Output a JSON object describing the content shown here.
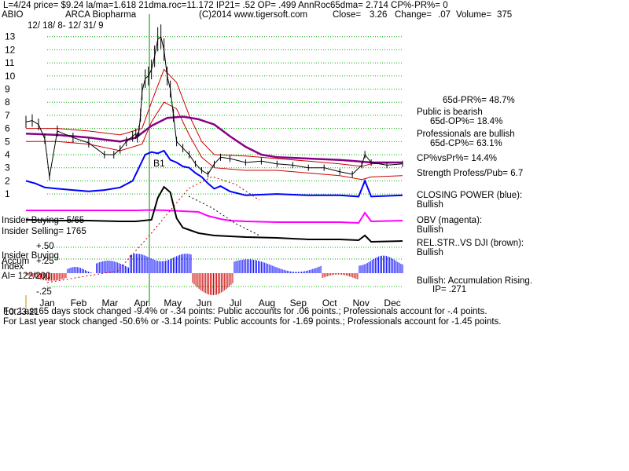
{
  "header": {
    "line1": "L=4/24  price= $9.24  la/ma=1.618 21dma.roc=11.172 IP21= .52 OP= .499 AnnRoc65dma= 2.714 CP%-PR%=  0",
    "ticker": "ABIO",
    "company": "ARCA Biopharma",
    "source": "(C)2014 www.tigersoft.com",
    "close_label": "Close=",
    "close_value": "3.26",
    "change_label": "Change=",
    "change_value": ".07",
    "volume_label": "Volume=",
    "volume_value": "375",
    "date_range": "12/ 18/ 8- 12/ 31/ 9"
  },
  "right_panel": {
    "pr_pct": "65d-PR%= 48.7%",
    "public_status": "Public is bearish",
    "op_pct": "65d-OP%= 18.4%",
    "pro_status": "Professionals are bullish",
    "cp_pct": "65d-CP%= 63.1%",
    "cp_vs_pr": "CP%vsPr%=  14.4%",
    "strength": "Strength Profess/Pub= 6.7",
    "closing_power_label": "CLOSING POWER (blue):",
    "closing_power_status": "Bullish",
    "obv_label": "OBV (magenta):",
    "obv_status": "Bullish",
    "relstr_label": "REL.STR..VS DJI (brown):",
    "relstr_status": "Bullish",
    "accum_label": "Bullish: Accumulation Rising.",
    "ip_label": "IP=  .271"
  },
  "left_panel": {
    "insider_buying": "Insider Buying= 5/65",
    "insider_selling": "Insider Selling= 1765",
    "accum_title1": "Insider Buying",
    "accum_title2": "Accum",
    "accum_title3": "Index",
    "ai_label": "AI= 122/200",
    "upper_line_label": "+.50",
    "mid_line_label": "+.25",
    "lower_line_label": "-.25"
  },
  "footer": {
    "line1": "For Last 65 days stock changed -9.4% or -.34 points:  Public accounts for  .06 points.;  Professionals account for -.4 points.",
    "line1_overlay": "10.23.21",
    "line2": "For Last year stock changed -50.6% or -3.14 points:  Public accounts for -1.69 points.;  Professionals account for -1.45 points."
  },
  "annotation": "B1",
  "colors": {
    "price": "#000000",
    "ma_red": "#cc0000",
    "ma_purple": "#880088",
    "closing_power": "#0000ff",
    "obv": "#ff00ff",
    "relstr": "#7a2a00",
    "accum_pos": "#0000ff",
    "accum_neg": "#cc0000",
    "vline": "#008800",
    "grid": "#00aa00"
  },
  "chart_data": {
    "type": "line",
    "ylim": [
      0,
      14
    ],
    "yticks": [
      1,
      2,
      3,
      4,
      5,
      6,
      7,
      8,
      9,
      10,
      11,
      12,
      13
    ],
    "months": [
      "Jan",
      "Feb",
      "Mar",
      "Apr",
      "May",
      "Jun",
      "Jul",
      "Aug",
      "Sep",
      "Oct",
      "Nov",
      "Dec"
    ],
    "price": {
      "x": [
        0,
        0.2,
        0.4,
        0.6,
        0.75,
        1,
        1.5,
        2,
        2.5,
        2.8,
        3,
        3.2,
        3.4,
        3.5,
        3.55,
        3.6,
        3.65,
        3.7,
        3.8,
        3.9,
        4,
        4.1,
        4.2,
        4.3,
        4.4,
        4.5,
        4.6,
        4.7,
        4.8,
        5,
        5.2,
        5.4,
        5.6,
        5.8,
        6,
        6.2,
        6.5,
        7,
        7.5,
        8,
        8.5,
        9,
        9.5,
        10,
        10.4,
        10.7,
        10.8,
        11,
        11.5,
        12
      ],
      "y": [
        6.5,
        6.6,
        6.3,
        5.2,
        2.3,
        5.8,
        5.3,
        4.9,
        4.0,
        4.0,
        4.4,
        5.0,
        5.4,
        5.6,
        5.3,
        5.8,
        7.0,
        8.8,
        9.8,
        10.0,
        10.5,
        11.5,
        12.8,
        13.0,
        12.0,
        10.0,
        9.0,
        7.0,
        5.0,
        4.5,
        4.0,
        3.3,
        2.8,
        2.5,
        3.3,
        3.8,
        3.7,
        3.4,
        3.5,
        3.3,
        3.2,
        3.0,
        3.0,
        2.7,
        2.5,
        3.2,
        4.0,
        3.4,
        3.2,
        3.3
      ]
    },
    "ma_red_upper": {
      "x": [
        0,
        1,
        2,
        3,
        3.7,
        4,
        4.4,
        4.8,
        5.2,
        5.6,
        6,
        7,
        8,
        9,
        10,
        10.7,
        11,
        12
      ],
      "y": [
        6.0,
        6.0,
        5.8,
        5.5,
        6.0,
        8.0,
        10.5,
        9.5,
        7.0,
        5.0,
        4.0,
        3.9,
        3.7,
        3.5,
        3.3,
        3.1,
        3.3,
        3.4
      ]
    },
    "ma_red_lower": {
      "x": [
        0,
        1,
        2,
        3,
        3.7,
        4,
        4.4,
        4.8,
        5.2,
        5.6,
        6,
        7,
        8,
        9,
        10,
        10.7,
        11,
        12
      ],
      "y": [
        5.0,
        5.0,
        4.8,
        4.3,
        4.8,
        6.5,
        8.0,
        7.5,
        5.5,
        3.8,
        3.0,
        2.8,
        2.8,
        2.6,
        2.4,
        2.1,
        2.3,
        2.4
      ]
    },
    "ma_purple": {
      "x": [
        0,
        1,
        2,
        3,
        3.5,
        4,
        4.5,
        5,
        5.5,
        6,
        6.5,
        7,
        7.5,
        8,
        9,
        10,
        10.5,
        11,
        12
      ],
      "y": [
        5.6,
        5.5,
        5.3,
        5.0,
        5.3,
        6.2,
        6.8,
        6.9,
        6.7,
        6.3,
        5.4,
        4.6,
        4.0,
        3.8,
        3.7,
        3.6,
        3.5,
        3.4,
        3.4
      ]
    },
    "closing_power": {
      "x": [
        0,
        0.3,
        0.6,
        1,
        1.5,
        2,
        2.5,
        3,
        3.4,
        3.6,
        3.8,
        4,
        4.2,
        4.4,
        4.6,
        4.8,
        5,
        5.2,
        5.4,
        5.6,
        5.8,
        6,
        6.2,
        6.5,
        7,
        8,
        9,
        10,
        10.6,
        10.8,
        11,
        12
      ],
      "y": [
        2.0,
        1.8,
        1.5,
        1.4,
        1.3,
        1.2,
        1.3,
        1.5,
        2.0,
        3.0,
        4.0,
        4.2,
        4.1,
        4.3,
        3.6,
        3.4,
        3.1,
        3.0,
        2.6,
        2.3,
        1.8,
        1.4,
        1.6,
        1.2,
        0.9,
        1.0,
        0.9,
        0.9,
        0.8,
        2.0,
        0.8,
        0.9
      ]
    },
    "obv": {
      "x": [
        0,
        1,
        2,
        3,
        3.5,
        4,
        4.5,
        5,
        5.5,
        5.8,
        6,
        6.2,
        6.5,
        7,
        8,
        9,
        10,
        10.6,
        10.8,
        11,
        12
      ],
      "y": [
        0.9,
        0.9,
        0.9,
        0.9,
        0.9,
        0.95,
        0.9,
        0.8,
        0.7,
        0.2,
        0.0,
        -0.2,
        -0.4,
        -0.5,
        -0.6,
        -0.6,
        -0.6,
        -0.7,
        0.6,
        -0.5,
        -0.4
      ]
    }
  }
}
